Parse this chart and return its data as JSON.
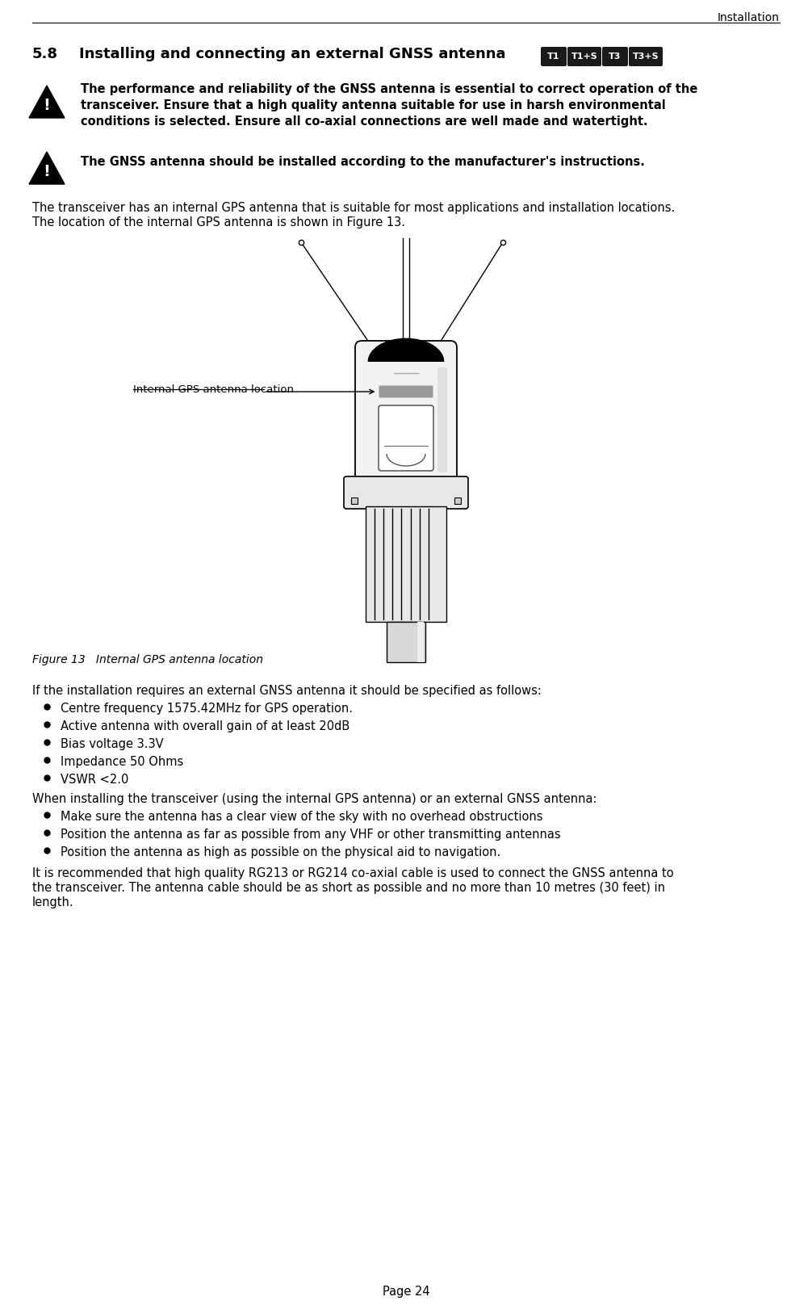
{
  "page_header": "Installation",
  "section_number": "5.8",
  "section_title": "Installing and connecting an external GNSS antenna",
  "tags": [
    "T1",
    "T1+S",
    "T3",
    "T3+S"
  ],
  "warning1_lines": [
    "The performance and reliability of the GNSS antenna is essential to correct operation of the",
    "transceiver. Ensure that a high quality antenna suitable for use in harsh environmental",
    "conditions is selected. Ensure all co-axial connections are well made and watertight."
  ],
  "warning2": "The GNSS antenna should be installed according to the manufacturer's instructions.",
  "intro_lines": [
    "The transceiver has an internal GPS antenna that is suitable for most applications and installation locations.",
    "The location of the internal GPS antenna is shown in Figure 13."
  ],
  "figure_caption": "Figure 13   Internal GPS antenna location",
  "callout_label": "Internal GPS antenna location",
  "body_text1": "If the installation requires an external GNSS antenna it should be specified as follows:",
  "bullets1": [
    "Centre frequency 1575.42MHz for GPS operation.",
    "Active antenna with overall gain of at least 20dB",
    "Bias voltage 3.3V",
    "Impedance 50 Ohms",
    "VSWR <2.0"
  ],
  "body_text2": "When installing the transceiver (using the internal GPS antenna) or an external GNSS antenna:",
  "bullets2": [
    "Make sure the antenna has a clear view of the sky with no overhead obstructions",
    "Position the antenna as far as possible from any VHF or other transmitting antennas",
    "Position the antenna as high as possible on the physical aid to navigation."
  ],
  "body_text3_lines": [
    "It is recommended that high quality RG213 or RG214 co-axial cable is used to connect the GNSS antenna to",
    "the transceiver. The antenna cable should be as short as possible and no more than 10 metres (30 feet) in",
    "length."
  ],
  "page_number": "Page 24",
  "bg_color": "#ffffff",
  "text_color": "#000000",
  "tag_bg_color": "#1a1a1a",
  "tag_text_color": "#ffffff"
}
